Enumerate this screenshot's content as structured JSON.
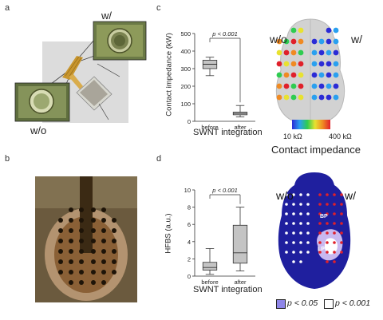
{
  "figure": {
    "panels": {
      "a": {
        "letter": "a",
        "label_with": "w/",
        "label_without": "w/o"
      },
      "b": {
        "letter": "b"
      },
      "c": {
        "letter": "c",
        "xlabel": "SWNT integration",
        "ylabel": "Contact impedance (kW)",
        "pvalue": "p < 0.001",
        "map": {
          "label_without": "w/o",
          "label_with": "w/",
          "scale_min": "10 kΩ",
          "scale_max": "400 kΩ",
          "title": "Contact impedance"
        }
      },
      "d": {
        "letter": "d",
        "xlabel": "SWNT integration",
        "ylabel": "HFBS (a.u.)",
        "pvalue": "p < 0.001",
        "map": {
          "label_without": "w/o",
          "label_with": "w/",
          "bp": "BP",
          "lp": "LP"
        },
        "legend": {
          "p05": "p < 0.05",
          "p001": "p < 0.001"
        }
      }
    }
  },
  "chart_data": [
    {
      "type": "box",
      "panel": "c",
      "categories": [
        "before",
        "after"
      ],
      "ylabel": "Contact impedance (kW)",
      "xlabel": "SWNT integration",
      "ylim": [
        0,
        500
      ],
      "yticks": [
        0,
        100,
        200,
        300,
        400,
        500
      ],
      "boxes": [
        {
          "name": "before",
          "min": 260,
          "q1": 300,
          "median": 325,
          "q3": 348,
          "max": 365
        },
        {
          "name": "after",
          "min": 25,
          "q1": 37,
          "median": 45,
          "q3": 52,
          "max": 90
        }
      ],
      "annotation": "p < 0.001"
    },
    {
      "type": "box",
      "panel": "d",
      "categories": [
        "before",
        "after"
      ],
      "ylabel": "HFBS (a.u.)",
      "xlabel": "SWNT integration",
      "ylim": [
        0,
        10
      ],
      "yticks": [
        0,
        2,
        4,
        6,
        8,
        10
      ],
      "boxes": [
        {
          "name": "before",
          "min": 0.2,
          "q1": 0.7,
          "median": 1.0,
          "q3": 1.6,
          "max": 3.2
        },
        {
          "name": "after",
          "min": 0.6,
          "q1": 1.5,
          "median": 2.7,
          "q3": 5.9,
          "max": 8.0
        }
      ],
      "annotation": "p < 0.001"
    }
  ]
}
